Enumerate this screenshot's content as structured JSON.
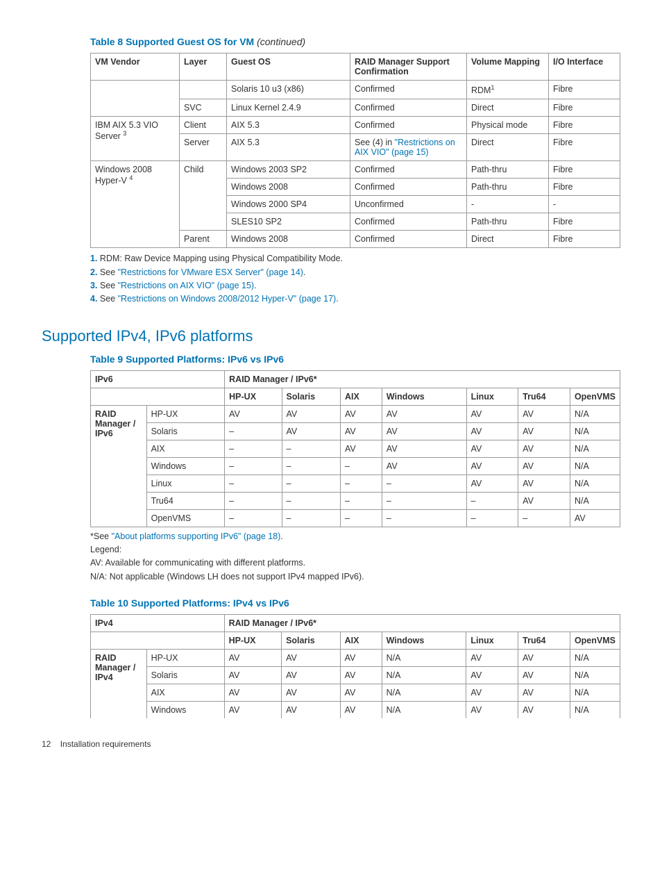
{
  "table8": {
    "title_prefix": "Table 8 Supported Guest OS for VM",
    "title_suffix": " (continued)",
    "headers": [
      "VM Vendor",
      "Layer",
      "Guest OS",
      "RAID Manager Support Confirmation",
      "Volume Mapping",
      "I/O Interface"
    ],
    "rows": [
      {
        "vendor": "",
        "layer": "",
        "os": "Solaris 10 u3 (x86)",
        "rm": "Confirmed",
        "vm": "RDM",
        "vm_sup": "1",
        "io": "Fibre"
      },
      {
        "vendor": "",
        "layer": "SVC",
        "os": "Linux Kernel 2.4.9",
        "rm": "Confirmed",
        "vm": "Direct",
        "io": "Fibre"
      },
      {
        "vendor": "IBM AIX 5.3 VIO Server",
        "vendor_sup": "3",
        "layer": "Client",
        "os": "AIX 5.3",
        "rm": "Confirmed",
        "vm": "Physical mode",
        "io": "Fibre"
      },
      {
        "vendor": "",
        "layer": "Server",
        "os": "AIX 5.3",
        "rm_prefix": "See (4) in ",
        "rm_link": "\"Restrictions on AIX VIO\" (page 15)",
        "vm": "Direct",
        "io": "Fibre"
      },
      {
        "vendor": "Windows 2008 Hyper-V",
        "vendor_sup": "4",
        "layer": "Child",
        "os": "Windows 2003 SP2",
        "rm": "Confirmed",
        "vm": "Path-thru",
        "io": "Fibre"
      },
      {
        "vendor": "",
        "layer": "",
        "os": "Windows 2008",
        "rm": "Confirmed",
        "vm": "Path-thru",
        "io": "Fibre"
      },
      {
        "vendor": "",
        "layer": "",
        "os": "Windows 2000 SP4",
        "rm": "Unconfirmed",
        "vm": "-",
        "io": "-"
      },
      {
        "vendor": "",
        "layer": "",
        "os": "SLES10 SP2",
        "rm": "Confirmed",
        "vm": "Path-thru",
        "io": "Fibre"
      },
      {
        "vendor": "",
        "layer": "Parent",
        "os": "Windows 2008",
        "rm": "Confirmed",
        "vm": "Direct",
        "io": "Fibre"
      }
    ],
    "footnotes": {
      "f1_num": "1.",
      "f1_text": " RDM: Raw Device Mapping using Physical Compatibility Mode.",
      "f2_num": "2.",
      "f2_pre": " See ",
      "f2_link": "\"Restrictions for VMware ESX Server\" (page 14)",
      "f2_post": ".",
      "f3_num": "3.",
      "f3_pre": " See ",
      "f3_link": "\"Restrictions on AIX VIO\" (page 15)",
      "f3_post": ".",
      "f4_num": "4.",
      "f4_pre": " See ",
      "f4_link": "\"Restrictions on Windows 2008/2012 Hyper-V\" (page 17)",
      "f4_post": "."
    }
  },
  "section_title": "Supported IPv4, IPv6 platforms",
  "table9": {
    "title": "Table 9 Supported Platforms: IPv6 vs IPv6",
    "top_left": "IPv6",
    "top_right": "RAID Manager / IPv6*",
    "cols": [
      "HP-UX",
      "Solaris",
      "AIX",
      "Windows",
      "Linux",
      "Tru64",
      "OpenVMS"
    ],
    "group_label": "RAID Manager / IPv6",
    "rows": [
      {
        "label": "HP-UX",
        "cells": [
          "AV",
          "AV",
          "AV",
          "AV",
          "AV",
          "AV",
          "N/A"
        ]
      },
      {
        "label": "Solaris",
        "cells": [
          "–",
          "AV",
          "AV",
          "AV",
          "AV",
          "AV",
          "N/A"
        ]
      },
      {
        "label": "AIX",
        "cells": [
          "–",
          "–",
          "AV",
          "AV",
          "AV",
          "AV",
          "N/A"
        ]
      },
      {
        "label": "Windows",
        "cells": [
          "–",
          "–",
          "–",
          "AV",
          "AV",
          "AV",
          "N/A"
        ]
      },
      {
        "label": "Linux",
        "cells": [
          "–",
          "–",
          "–",
          "–",
          "AV",
          "AV",
          "N/A"
        ]
      },
      {
        "label": "Tru64",
        "cells": [
          "–",
          "–",
          "–",
          "–",
          "–",
          "AV",
          "N/A"
        ]
      },
      {
        "label": "OpenVMS",
        "cells": [
          "–",
          "–",
          "–",
          "–",
          "–",
          "–",
          "AV"
        ]
      }
    ],
    "note_pre": "*See ",
    "note_link": "\"About platforms supporting IPv6\" (page 18)",
    "note_post": ".",
    "legend_title": "Legend:",
    "legend_av": "AV: Available for communicating with different platforms.",
    "legend_na": "N/A: Not applicable (Windows LH does not support IPv4 mapped IPv6)."
  },
  "table10": {
    "title": "Table 10 Supported Platforms: IPv4 vs IPv6",
    "top_left": "IPv4",
    "top_right": "RAID Manager / IPv6*",
    "cols": [
      "HP-UX",
      "Solaris",
      "AIX",
      "Windows",
      "Linux",
      "Tru64",
      "OpenVMS"
    ],
    "group_label": "RAID Manager / IPv4",
    "rows": [
      {
        "label": "HP-UX",
        "cells": [
          "AV",
          "AV",
          "AV",
          "N/A",
          "AV",
          "AV",
          "N/A"
        ]
      },
      {
        "label": "Solaris",
        "cells": [
          "AV",
          "AV",
          "AV",
          "N/A",
          "AV",
          "AV",
          "N/A"
        ]
      },
      {
        "label": "AIX",
        "cells": [
          "AV",
          "AV",
          "AV",
          "N/A",
          "AV",
          "AV",
          "N/A"
        ]
      },
      {
        "label": "Windows",
        "cells": [
          "AV",
          "AV",
          "AV",
          "N/A",
          "AV",
          "AV",
          "N/A"
        ]
      }
    ]
  },
  "footer": {
    "page": "12",
    "section": "Installation requirements"
  }
}
